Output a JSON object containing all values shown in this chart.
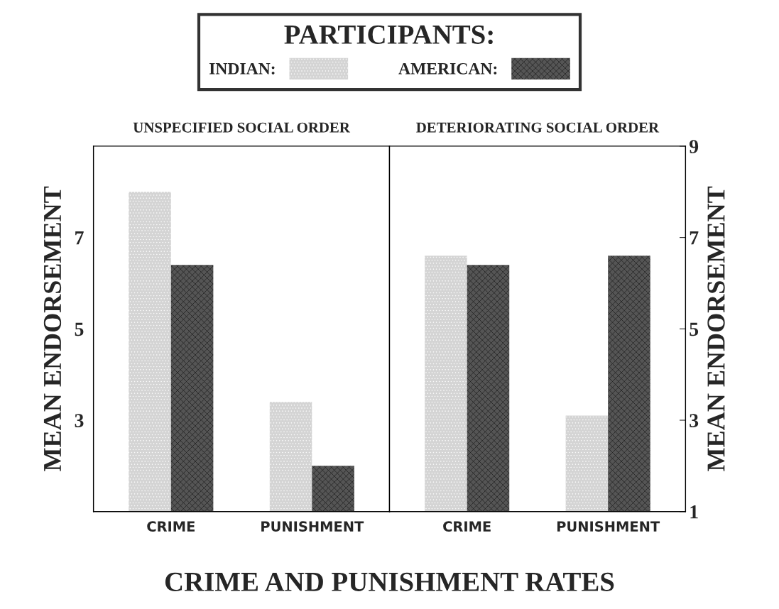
{
  "chart_data": [
    {
      "type": "bar",
      "title": "UNSPECIFIED SOCIAL ORDER",
      "ylabel": "MEAN ENDORSEMENT",
      "xlabel": "CRIME AND PUNISHMENT RATES",
      "categories": [
        "CRIME",
        "PUNISHMENT"
      ],
      "series": [
        {
          "name": "INDIAN:",
          "color": "#d4d4d4",
          "values": [
            8.0,
            3.4
          ]
        },
        {
          "name": "AMERICAN:",
          "color": "#555555",
          "values": [
            6.4,
            2.0
          ]
        }
      ],
      "ylim": [
        1,
        9
      ],
      "yticks": [
        3,
        5,
        7
      ],
      "legend": "top",
      "legend_title": "PARTICIPANTS:",
      "grid": false
    },
    {
      "type": "bar",
      "title": "DETERIORATING SOCIAL ORDER",
      "y2label": "MEAN ENDORSEMENT",
      "categories": [
        "CRIME",
        "PUNISHMENT"
      ],
      "series": [
        {
          "color": "#d4d4d4",
          "values": [
            6.6,
            3.1
          ],
          "axis": "y2"
        },
        {
          "color": "#555555",
          "values": [
            6.4,
            6.6
          ],
          "axis": "y2"
        }
      ],
      "y2lim": [
        1,
        9
      ],
      "y2ticks": [
        1,
        3,
        5,
        7,
        9
      ],
      "grid": false
    }
  ]
}
